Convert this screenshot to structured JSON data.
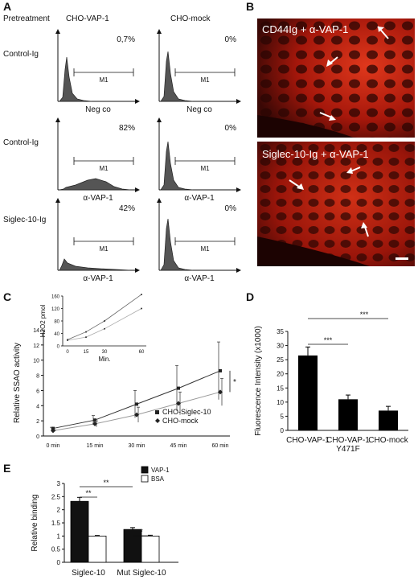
{
  "panel_labels": {
    "a": "A",
    "b": "B",
    "c": "C",
    "d": "D",
    "e": "E"
  },
  "panel_a": {
    "pretreatment_label": "Pretreatment",
    "col_headers": [
      "CHO-VAP-1",
      "CHO-mock"
    ],
    "row_labels": [
      "Control-Ig",
      "Control-Ig",
      "Siglec-10-Ig"
    ],
    "gate_label": "M1",
    "histograms": [
      {
        "percent": "0,7%",
        "xlabel": "Neg co"
      },
      {
        "percent": "0%",
        "xlabel": "Neg co"
      },
      {
        "percent": "82%",
        "xlabel": "α-VAP-1"
      },
      {
        "percent": "0%",
        "xlabel": "α-VAP-1"
      },
      {
        "percent": "42%",
        "xlabel": "α-VAP-1"
      },
      {
        "percent": "0%",
        "xlabel": "α-VAP-1"
      }
    ]
  },
  "panel_b": {
    "top_label": "CD44Ig + α-VAP-1",
    "bottom_label": "Siglec-10-Ig + α-VAP-1"
  },
  "chart_data": [
    {
      "type": "line",
      "panel": "C",
      "ylabel": "Relative SSAO activity",
      "categories": [
        "0 min",
        "15 min",
        "30 min",
        "45 min",
        "60 min"
      ],
      "ylim": [
        0,
        14
      ],
      "yticks": [
        "0",
        "2",
        "4",
        "6",
        "8",
        "10",
        "12",
        "14"
      ],
      "series": [
        {
          "name": "CHO-Siglec-10",
          "marker": "square",
          "values": [
            1.0,
            2.1,
            4.2,
            6.3,
            8.6
          ],
          "errors": [
            0.15,
            0.6,
            1.8,
            3.0,
            3.8
          ]
        },
        {
          "name": "CHO-mock",
          "marker": "diamond",
          "values": [
            0.7,
            1.6,
            2.8,
            4.3,
            5.8
          ],
          "errors": [
            0.1,
            0.4,
            1.0,
            1.5,
            1.8
          ]
        }
      ],
      "significance": "*",
      "inset": {
        "type": "line",
        "ylabel": "H2O2 pmol",
        "xlabel": "Min.",
        "x": [
          0,
          15,
          30,
          60
        ],
        "xticks": [
          "0",
          "15",
          "30",
          "60"
        ],
        "yticks": [
          "0",
          "40",
          "80",
          "120",
          "160"
        ],
        "ylim": [
          0,
          160
        ],
        "series": [
          {
            "values": [
              20,
              45,
              80,
              165
            ]
          },
          {
            "values": [
              18,
              28,
              55,
              120
            ]
          }
        ]
      }
    },
    {
      "type": "bar",
      "panel": "D",
      "ylabel": "Fluorescence Intensity (x1000)",
      "categories": [
        "CHO-VAP-1",
        "CHO-VAP-1\nY471F",
        "CHO-mock"
      ],
      "category_lines": [
        [
          "CHO-VAP-1"
        ],
        [
          "CHO-VAP-1",
          "Y471F"
        ],
        [
          "CHO-mock"
        ]
      ],
      "values": [
        26.5,
        11,
        7
      ],
      "errors": [
        3,
        1.5,
        1.5
      ],
      "ylim": [
        0,
        35
      ],
      "yticks": [
        "0",
        "5",
        "10",
        "15",
        "20",
        "25",
        "30",
        "35"
      ],
      "significance": [
        "***",
        "***"
      ]
    },
    {
      "type": "bar",
      "panel": "E",
      "ylabel": "Relative binding",
      "categories": [
        "Siglec-10",
        "Mut Siglec-10"
      ],
      "series": [
        {
          "name": "VAP-1",
          "color": "#111111",
          "values": [
            2.32,
            1.25
          ],
          "errors": [
            0.15,
            0.07
          ]
        },
        {
          "name": "BSA",
          "color": "#ffffff",
          "values": [
            1.0,
            1.0
          ],
          "errors": [
            0.02,
            0.03
          ]
        }
      ],
      "ylim": [
        0,
        3
      ],
      "yticks": [
        "0",
        "0.5",
        "1",
        "1.5",
        "2",
        "2.5",
        "3"
      ],
      "significance": [
        "**",
        "**",
        "*"
      ]
    }
  ]
}
